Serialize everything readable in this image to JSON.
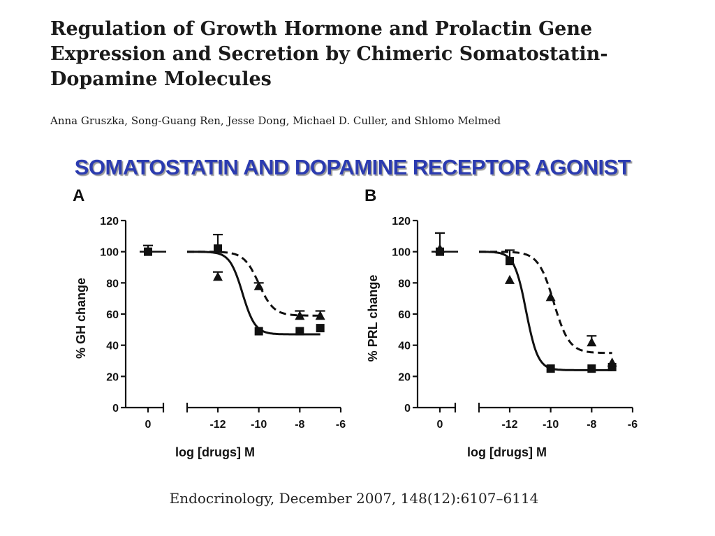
{
  "paper": {
    "title_lines": [
      "Regulation of Growth Hormone and Prolactin Gene",
      "Expression and Secretion by Chimeric Somatostatin-",
      "Dopamine Molecules"
    ],
    "authors": "Anna Gruszka, Song-Guang Ren, Jesse Dong, Michael D. Culler, and Shlomo Melmed"
  },
  "slide": {
    "heading": "SOMATOSTATIN AND DOPAMINE RECEPTOR AGONIST",
    "heading_color": "#2b3bb0"
  },
  "citation": "Endocrinology, December 2007, 148(12):6107–6114",
  "chart_data": [
    {
      "type": "scatter",
      "panel_label": "A",
      "ylabel": "% GH change",
      "xlabel": "log [drugs] M",
      "ylim": [
        0,
        120
      ],
      "yticks": [
        0,
        20,
        40,
        60,
        80,
        100,
        120
      ],
      "xlim": [
        -13.5,
        -6
      ],
      "xticks": [
        -12,
        -10,
        -8,
        -6
      ],
      "control_tick": "0",
      "grid": false,
      "legend": "none",
      "control": [
        {
          "marker": "square",
          "y": 100,
          "err": 4
        }
      ],
      "series": [
        {
          "marker": "square",
          "line": "solid",
          "points": [
            {
              "x": -12,
              "y": 102,
              "err": 9
            },
            {
              "x": -10,
              "y": 49,
              "err": 0
            },
            {
              "x": -8,
              "y": 49,
              "err": 0
            },
            {
              "x": -7,
              "y": 51,
              "err": 0
            }
          ],
          "fit": {
            "top": 100,
            "bottom": 47,
            "log_ic50": -10.8,
            "hill": 1.4
          }
        },
        {
          "marker": "triangle",
          "line": "dashed",
          "points": [
            {
              "x": -12,
              "y": 84,
              "err": 3
            },
            {
              "x": -10,
              "y": 78,
              "err": 2
            },
            {
              "x": -8,
              "y": 59,
              "err": 3
            },
            {
              "x": -7,
              "y": 59,
              "err": 3
            }
          ],
          "fit": {
            "top": 100,
            "bottom": 59,
            "log_ic50": -10.0,
            "hill": 1.2
          }
        }
      ]
    },
    {
      "type": "scatter",
      "panel_label": "B",
      "ylabel": "% PRL change",
      "xlabel": "log [drugs] M",
      "ylim": [
        0,
        120
      ],
      "yticks": [
        0,
        20,
        40,
        60,
        80,
        100,
        120
      ],
      "xlim": [
        -13.5,
        -6
      ],
      "xticks": [
        -12,
        -10,
        -8,
        -6
      ],
      "control_tick": "0",
      "grid": false,
      "legend": "none",
      "control": [
        {
          "marker": "square",
          "y": 100,
          "err": 12
        },
        {
          "marker": "triangle",
          "y": 102,
          "err": 0
        }
      ],
      "series": [
        {
          "marker": "square",
          "line": "solid",
          "points": [
            {
              "x": -12,
              "y": 94,
              "err": 7
            },
            {
              "x": -10,
              "y": 25,
              "err": 0
            },
            {
              "x": -8,
              "y": 25,
              "err": 0
            },
            {
              "x": -7,
              "y": 26,
              "err": 0
            }
          ],
          "fit": {
            "top": 100,
            "bottom": 24,
            "log_ic50": -11.2,
            "hill": 1.5
          }
        },
        {
          "marker": "triangle",
          "line": "dashed",
          "points": [
            {
              "x": -12,
              "y": 82,
              "err": 0
            },
            {
              "x": -10,
              "y": 71,
              "err": 0
            },
            {
              "x": -8,
              "y": 42,
              "err": 4
            },
            {
              "x": -7,
              "y": 29,
              "err": 0
            }
          ],
          "fit": {
            "top": 100,
            "bottom": 35,
            "log_ic50": -9.85,
            "hill": 1.15
          }
        }
      ]
    }
  ]
}
